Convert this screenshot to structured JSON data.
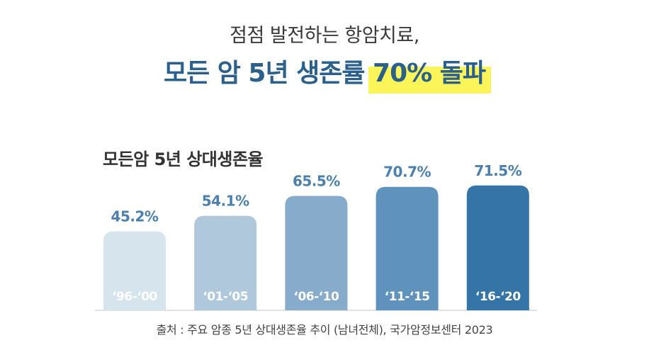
{
  "headline": {
    "line1": "점점 발전하는 항암치료,",
    "line2_main": "모든 암 5년 생존률 ",
    "line2_highlight": "70% 돌파"
  },
  "source": "출처 : 주요 암종 5년 상대생존율 추이 (남녀전체), 국가암정보센터 2023",
  "colors": {
    "headline_blue": "#2b5f8c",
    "highlight_yellow": "#fbf55a",
    "bars": [
      "#d6e4ee",
      "#afc8dc",
      "#87abca",
      "#5f92bd",
      "#3574a7"
    ],
    "value_label": "#4a7fb0"
  },
  "chart_data": {
    "type": "bar",
    "title": "모든암 5년 상대생존율",
    "categories": [
      "‘96-‘00",
      "‘01-‘05",
      "‘06-‘10",
      "‘11-‘15",
      "‘16-‘20"
    ],
    "values": [
      45.2,
      54.1,
      65.5,
      70.7,
      71.5
    ],
    "value_labels": [
      "45.2%",
      "54.1%",
      "65.5%",
      "70.7%",
      "71.5%"
    ],
    "unit": "%",
    "ylim": [
      0,
      100
    ],
    "grid": false,
    "legend": "none"
  }
}
